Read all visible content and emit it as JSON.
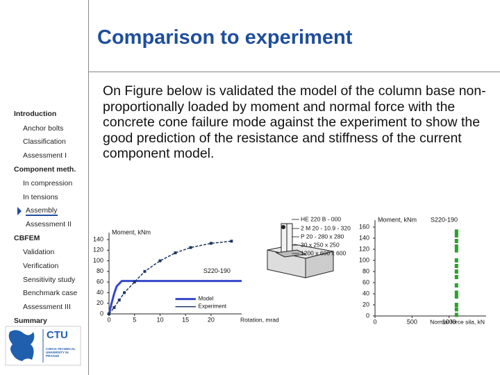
{
  "title": "Comparison to experiment",
  "nav": [
    "Introduction",
    "Anchor bolts",
    "Classification",
    "Assessment I",
    "Component meth.",
    "In compression",
    "In tensions",
    "Assembly",
    "Assessment II",
    "CBFEM",
    "Validation",
    "Verification",
    "Sensitivity study",
    "Benchmark case",
    "Assessment III",
    "Summary"
  ],
  "body": "On Figure below is validated the model of the column base non-proportionally loaded by moment and normal force with the concrete cone failure mode against the experiment to show the good prediction of the resistance and stiffness of the current component model.",
  "figure": {
    "left_chart": {
      "type": "line",
      "y_label": "Moment, kNm",
      "x_label": "Rotation, mrad",
      "specimen": "S220-190",
      "xlim": [
        0,
        26
      ],
      "ylim": [
        0,
        140
      ],
      "xticks": [
        0,
        5,
        10,
        15,
        20
      ],
      "yticks": [
        0,
        20,
        40,
        60,
        80,
        100,
        120,
        140
      ],
      "series": [
        {
          "name": "Model",
          "color": "#3346c8",
          "x": [
            0,
            0.5,
            1,
            1.5,
            2.5,
            26
          ],
          "values": [
            0,
            20,
            38,
            52,
            62,
            62
          ]
        },
        {
          "name": "Experiment",
          "color": "#1c3560",
          "x": [
            0,
            1,
            2,
            3,
            5,
            7,
            10,
            13,
            16,
            20,
            24
          ],
          "values": [
            0,
            12,
            26,
            40,
            60,
            80,
            100,
            115,
            125,
            133,
            137
          ]
        }
      ]
    },
    "diagram": {
      "labels": [
        "HE 220 B - 000",
        "2 M 20 - 10.9 - 320",
        "P 20 - 280 x 280",
        "30 x 250 x 250",
        "1200 x 600 x 600"
      ]
    },
    "right_chart": {
      "type": "scatter",
      "y_label": "Moment, kNm",
      "x_label": "Normal force sila, kN",
      "specimen": "S220-190",
      "xlim": [
        0,
        1500
      ],
      "ylim": [
        0,
        160
      ],
      "xticks": [
        0,
        500,
        1000
      ],
      "yticks": [
        0,
        20,
        40,
        60,
        80,
        100,
        120,
        140,
        160
      ],
      "series": [
        {
          "color": "#2ca02c",
          "x": [
            1100,
            1100,
            1100,
            1100,
            1100,
            1100,
            1100,
            1100,
            1100,
            1100,
            1100,
            1100,
            1100,
            1100,
            1100
          ],
          "values": [
            2,
            12,
            20,
            35,
            42,
            55,
            70,
            80,
            90,
            100,
            118,
            125,
            135,
            145,
            152
          ]
        }
      ]
    }
  },
  "logo": {
    "name": "CTU",
    "subtitle": "CZECH TECHNICAL UNIVERSITY IN PRAGUE"
  }
}
